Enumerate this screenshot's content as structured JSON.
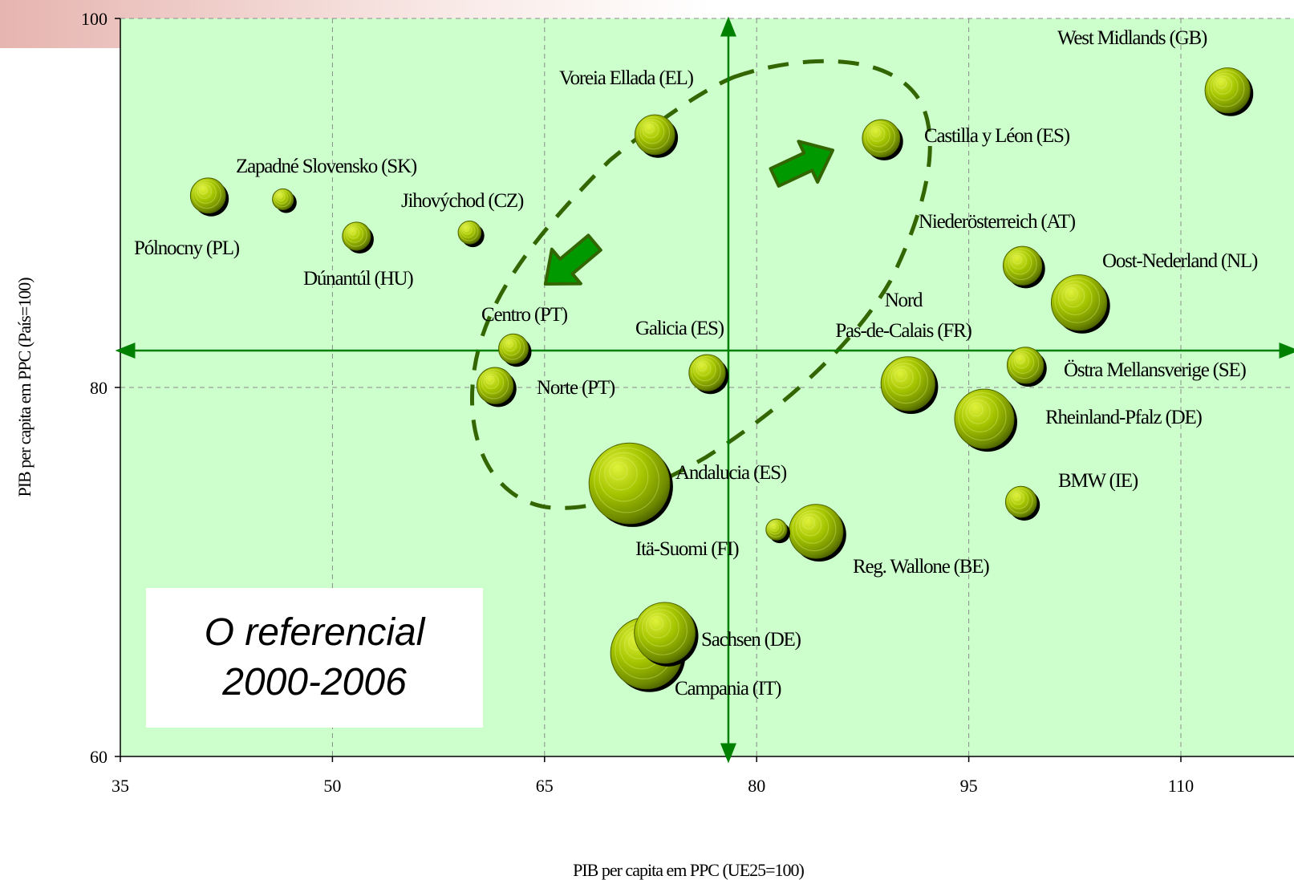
{
  "chart_data": {
    "type": "scatter",
    "subtype": "bubble",
    "xlabel": "PIB per capita em PPC (UE25=100)",
    "ylabel": "PIB per capita em PPC (País=100)",
    "xlim": [
      35,
      118
    ],
    "ylim": [
      60,
      100
    ],
    "xticks": [
      35,
      50,
      65,
      80,
      95,
      110
    ],
    "yticks": [
      60,
      80,
      100
    ],
    "grid": true,
    "reference_lines": {
      "x": 78,
      "y": 82
    },
    "annotation_box": {
      "line1": "O referencial",
      "line2": "2000-2006"
    },
    "colors": {
      "plot_background": "#ccffcc",
      "bubble": "#99bb00",
      "bubble_dark": "#5f7a00",
      "reference_line": "#008000",
      "dashed_region": "#336600",
      "arrow": "#009900",
      "arrow_edge": "#336600"
    },
    "points": [
      {
        "name": "West Midlands (GB)",
        "x": 113.3,
        "y": 96.1,
        "size": 2.3
      },
      {
        "name": "Castilla y Léon (ES)",
        "x": 88.8,
        "y": 93.5,
        "size": 1.6
      },
      {
        "name": "Voreia Ellada (EL)",
        "x": 72.8,
        "y": 93.7,
        "size": 1.8
      },
      {
        "name": "Zapadné Slovensko (SK)",
        "x": 46.5,
        "y": 90.2,
        "size": 0.5
      },
      {
        "name": "Pólnocny (PL)",
        "x": 41.2,
        "y": 90.4,
        "size": 1.4
      },
      {
        "name": "Jihovýchod (CZ)",
        "x": 59.7,
        "y": 88.4,
        "size": 0.6
      },
      {
        "name": "Dúnantúl (HU)",
        "x": 51.7,
        "y": 88.2,
        "size": 0.9
      },
      {
        "name": "Niederösterreich (AT)",
        "x": 98.8,
        "y": 86.6,
        "size": 1.7
      },
      {
        "name": "Oost-Nederland (NL)",
        "x": 102.8,
        "y": 84.6,
        "size": 3.5
      },
      {
        "name": "Centro (PT)",
        "x": 62.8,
        "y": 82.1,
        "size": 1.0
      },
      {
        "name": "Norte (PT)",
        "x": 61.5,
        "y": 80.1,
        "size": 1.5
      },
      {
        "name": "Galicia (ES)",
        "x": 76.5,
        "y": 80.8,
        "size": 1.5
      },
      {
        "name": "Nord Pas-de-Calais (FR)",
        "x": 90.7,
        "y": 80.2,
        "size": 3.3
      },
      {
        "name": "Östra Mellansverige (SE)",
        "x": 99.0,
        "y": 81.2,
        "size": 1.5
      },
      {
        "name": "Rheinland-Pfalz (DE)",
        "x": 96.1,
        "y": 78.3,
        "size": 4.0
      },
      {
        "name": "Andalucia (ES)",
        "x": 71.0,
        "y": 74.8,
        "size": 7.4
      },
      {
        "name": "BMW (IE)",
        "x": 98.7,
        "y": 73.8,
        "size": 1.1
      },
      {
        "name": "Itä-Suomi (FI)",
        "x": 81.4,
        "y": 72.3,
        "size": 0.5
      },
      {
        "name": "Reg. Wallone (BE)",
        "x": 84.2,
        "y": 72.2,
        "size": 3.3
      },
      {
        "name": "Sachsen (DE)",
        "x": 73.5,
        "y": 66.7,
        "size": 4.2
      },
      {
        "name": "Campania (IT)",
        "x": 72.2,
        "y": 65.6,
        "size": 5.8
      }
    ]
  }
}
